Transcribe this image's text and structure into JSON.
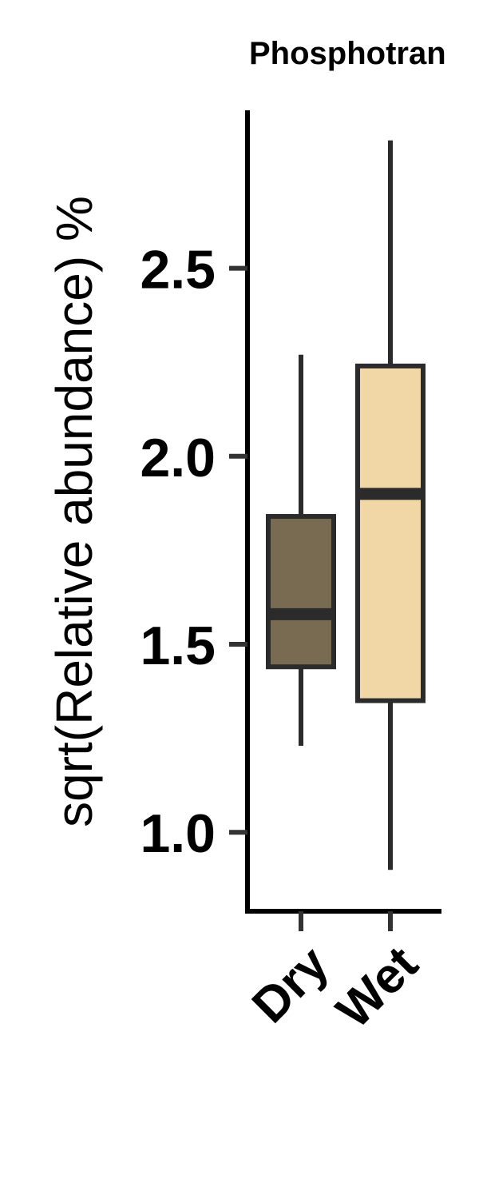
{
  "chart_data": {
    "type": "box",
    "title": "Phosphotran",
    "ylabel": "sqrt(Relative abundance) %",
    "xlabel": "",
    "ylim": [
      0.79,
      2.92
    ],
    "yticks": [
      1.0,
      1.5,
      2.0,
      2.5
    ],
    "ytick_labels": [
      "1.0",
      "1.5",
      "2.0",
      "2.5"
    ],
    "categories": [
      "Dry",
      "Wet"
    ],
    "boxes": [
      {
        "category": "Dry",
        "whisker_low": 1.23,
        "q1": 1.44,
        "median": 1.58,
        "q3": 1.84,
        "whisker_high": 2.27,
        "color": "#786b52"
      },
      {
        "category": "Wet",
        "whisker_low": 0.9,
        "q1": 1.35,
        "median": 1.9,
        "q3": 2.24,
        "whisker_high": 2.84,
        "color": "#f1d7a5"
      }
    ],
    "grid": false,
    "legend": "none"
  }
}
